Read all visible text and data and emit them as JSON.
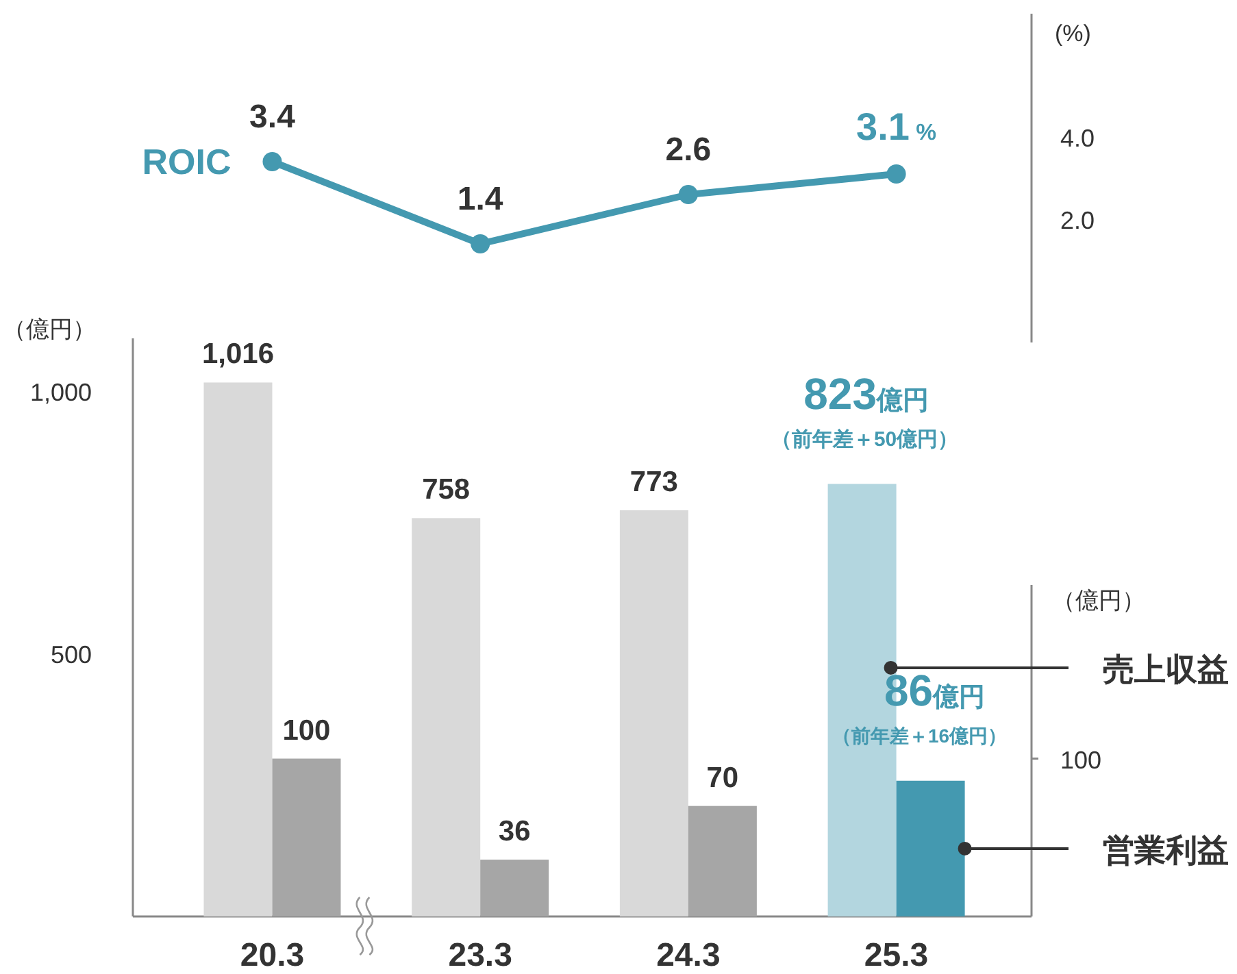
{
  "chart_data": [
    {
      "type": "line",
      "categories": [
        "20.3",
        "23.3",
        "24.3",
        "25.3"
      ],
      "ylabel": "(%)",
      "ylim": [
        -1,
        7
      ],
      "yticks": [
        {
          "value": 2,
          "label": "2.0"
        },
        {
          "value": 4,
          "label": "4.0"
        }
      ],
      "tick_labels": "y",
      "marker": "circle",
      "line_style": "solid",
      "series": [
        {
          "name": "ROIC",
          "color": "#4499b0",
          "values": [
            3.4,
            1.4,
            2.6,
            3.1
          ],
          "value_labels": [
            "3.4",
            "1.4",
            "2.6",
            "3.1 %"
          ]
        }
      ]
    },
    {
      "type": "bar",
      "categories": [
        "20.3",
        "23.3",
        "24.3",
        "25.3"
      ],
      "ylabel": "（億円）",
      "y2label": "（億円）",
      "ylim": [
        0,
        1100
      ],
      "yticks": [
        {
          "value": 500,
          "label": "500"
        },
        {
          "value": 1000,
          "label": "1,000"
        }
      ],
      "y2lim": [
        0,
        210
      ],
      "y2ticks": [
        100
      ],
      "series": [
        {
          "name": "売上収益",
          "colors": [
            "#d9d9d9",
            "#d9d9d9",
            "#d9d9d9",
            "#b3d6df"
          ],
          "values": [
            1016,
            758,
            773,
            823
          ],
          "value_labels": [
            "1,016",
            "758",
            "773",
            "823億円"
          ]
        },
        {
          "name": "営業利益",
          "axis": "y2",
          "colors": [
            "#a6a6a6",
            "#a6a6a6",
            "#a6a6a6",
            "#4499b0"
          ],
          "values": [
            100,
            36,
            70,
            86
          ],
          "value_labels": [
            "100",
            "36",
            "70",
            "86億円"
          ]
        }
      ],
      "annotations": [
        "（前年差＋50億円）",
        "（前年差＋16億円）"
      ]
    }
  ]
}
